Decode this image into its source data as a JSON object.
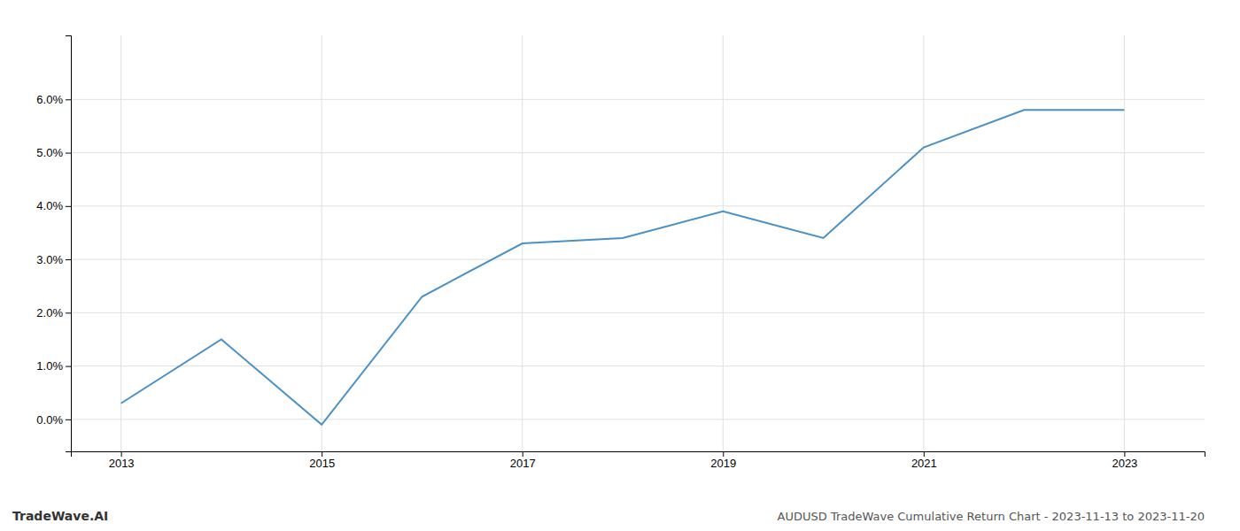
{
  "chart_data": {
    "type": "line",
    "title": "AUDUSD TradeWave Cumulative Return Chart - 2023-11-13 to 2023-11-20",
    "annotations": [
      "TradeWave.AI"
    ],
    "x": [
      2013,
      2014,
      2015,
      2016,
      2017,
      2018,
      2019,
      2020,
      2021,
      2022,
      2023
    ],
    "values": [
      0.003,
      0.015,
      -0.001,
      0.023,
      0.033,
      0.034,
      0.039,
      0.034,
      0.051,
      0.058,
      0.058
    ],
    "color": "#4a90c4",
    "xlim": [
      2012.5,
      2023.8
    ],
    "ylim": [
      -0.006,
      0.072
    ],
    "xticks": [
      2013,
      2015,
      2017,
      2019,
      2021,
      2023
    ],
    "yticks": [
      {
        "value": 0.0,
        "label": "0.0%"
      },
      {
        "value": 0.01,
        "label": "1.0%"
      },
      {
        "value": 0.02,
        "label": "2.0%"
      },
      {
        "value": 0.03,
        "label": "3.0%"
      },
      {
        "value": 0.04,
        "label": "4.0%"
      },
      {
        "value": 0.05,
        "label": "5.0%"
      },
      {
        "value": 0.06,
        "label": "6.0%"
      }
    ],
    "grid": true
  }
}
